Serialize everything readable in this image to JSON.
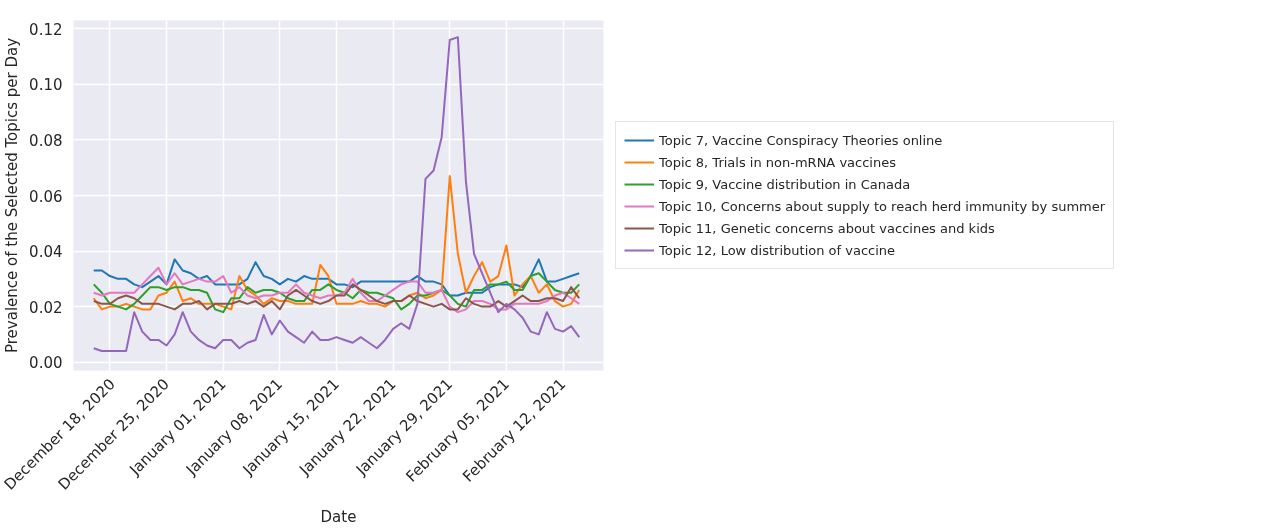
{
  "chart_data": {
    "type": "line",
    "xlabel": "Date",
    "ylabel": "Prevalence of the Selected Topics per Day",
    "x": [
      "2020-12-16",
      "2020-12-17",
      "2020-12-18",
      "2020-12-19",
      "2020-12-20",
      "2020-12-21",
      "2020-12-22",
      "2020-12-23",
      "2020-12-24",
      "2020-12-25",
      "2020-12-26",
      "2020-12-27",
      "2020-12-28",
      "2020-12-29",
      "2020-12-30",
      "2020-12-31",
      "2021-01-01",
      "2021-01-02",
      "2021-01-03",
      "2021-01-04",
      "2021-01-05",
      "2021-01-06",
      "2021-01-07",
      "2021-01-08",
      "2021-01-09",
      "2021-01-10",
      "2021-01-11",
      "2021-01-12",
      "2021-01-13",
      "2021-01-14",
      "2021-01-15",
      "2021-01-16",
      "2021-01-17",
      "2021-01-18",
      "2021-01-19",
      "2021-01-20",
      "2021-01-21",
      "2021-01-22",
      "2021-01-23",
      "2021-01-24",
      "2021-01-25",
      "2021-01-26",
      "2021-01-27",
      "2021-01-28",
      "2021-01-29",
      "2021-01-30",
      "2021-01-31",
      "2021-02-01",
      "2021-02-02",
      "2021-02-03",
      "2021-02-04",
      "2021-02-05",
      "2021-02-06",
      "2021-02-07",
      "2021-02-08",
      "2021-02-09",
      "2021-02-10",
      "2021-02-11",
      "2021-02-12",
      "2021-02-13",
      "2021-02-14"
    ],
    "xlim": [
      "2020-12-13T12:00",
      "2021-02-17T00:00"
    ],
    "xticks": [
      {
        "value": "2020-12-18",
        "label": "December 18, 2020"
      },
      {
        "value": "2020-12-25",
        "label": "December 25, 2020"
      },
      {
        "value": "2021-01-01",
        "label": "January 01, 2021"
      },
      {
        "value": "2021-01-08",
        "label": "January 08, 2021"
      },
      {
        "value": "2021-01-15",
        "label": "January 15, 2021"
      },
      {
        "value": "2021-01-22",
        "label": "January 22, 2021"
      },
      {
        "value": "2021-01-29",
        "label": "January 29, 2021"
      },
      {
        "value": "2021-02-05",
        "label": "February 05, 2021"
      },
      {
        "value": "2021-02-12",
        "label": "February 12, 2021"
      }
    ],
    "ylim": [
      -0.003,
      0.123
    ],
    "yticks": [
      {
        "value": 0,
        "label": "0.00"
      },
      {
        "value": 0.02,
        "label": "0.02"
      },
      {
        "value": 0.04,
        "label": "0.04"
      },
      {
        "value": 0.06,
        "label": "0.06"
      },
      {
        "value": 0.08,
        "label": "0.08"
      },
      {
        "value": 0.1,
        "label": "0.10"
      },
      {
        "value": 0.12,
        "label": "0.12"
      }
    ],
    "grid": true,
    "legend": "right",
    "line_style": "solid",
    "series": [
      {
        "name": "Topic 7, Vaccine Conspiracy Theories online",
        "color": "#1f77b4",
        "values": [
          0.033,
          0.033,
          0.031,
          0.03,
          0.03,
          0.028,
          0.027,
          0.029,
          0.031,
          0.028,
          0.037,
          0.033,
          0.032,
          0.03,
          0.031,
          0.028,
          0.028,
          0.028,
          0.028,
          0.03,
          0.036,
          0.031,
          0.03,
          0.028,
          0.03,
          0.029,
          0.031,
          0.03,
          0.03,
          0.03,
          0.028,
          0.028,
          0.027,
          0.029,
          0.029,
          0.029,
          0.029,
          0.029,
          0.029,
          0.029,
          0.031,
          0.029,
          0.029,
          0.028,
          0.024,
          0.024,
          0.025,
          0.025,
          0.025,
          0.027,
          0.028,
          0.028,
          0.028,
          0.027,
          0.031,
          0.037,
          0.029,
          0.029,
          0.03,
          0.031,
          0.032
        ]
      },
      {
        "name": "Topic 8, Trials in non-mRNA vaccines",
        "color": "#ff7f0e",
        "values": [
          0.023,
          0.019,
          0.02,
          0.02,
          0.021,
          0.02,
          0.019,
          0.019,
          0.024,
          0.025,
          0.029,
          0.022,
          0.023,
          0.021,
          0.021,
          0.021,
          0.02,
          0.019,
          0.031,
          0.026,
          0.024,
          0.021,
          0.023,
          0.022,
          0.022,
          0.021,
          0.021,
          0.021,
          0.035,
          0.031,
          0.021,
          0.021,
          0.021,
          0.022,
          0.021,
          0.021,
          0.02,
          0.022,
          0.022,
          0.024,
          0.025,
          0.023,
          0.024,
          0.026,
          0.067,
          0.039,
          0.025,
          0.031,
          0.036,
          0.029,
          0.031,
          0.042,
          0.024,
          0.028,
          0.031,
          0.025,
          0.028,
          0.022,
          0.02,
          0.021,
          0.026
        ]
      },
      {
        "name": "Topic 9, Vaccine distribution in Canada",
        "color": "#2ca02c",
        "values": [
          0.028,
          0.025,
          0.021,
          0.02,
          0.019,
          0.021,
          0.024,
          0.027,
          0.027,
          0.026,
          0.027,
          0.027,
          0.026,
          0.026,
          0.025,
          0.019,
          0.018,
          0.023,
          0.023,
          0.027,
          0.025,
          0.026,
          0.026,
          0.025,
          0.023,
          0.022,
          0.022,
          0.026,
          0.026,
          0.028,
          0.026,
          0.025,
          0.023,
          0.026,
          0.025,
          0.025,
          0.024,
          0.023,
          0.019,
          0.021,
          0.024,
          0.024,
          0.025,
          0.026,
          0.024,
          0.021,
          0.02,
          0.026,
          0.026,
          0.028,
          0.028,
          0.029,
          0.026,
          0.026,
          0.031,
          0.032,
          0.029,
          0.026,
          0.025,
          0.025,
          0.028
        ]
      },
      {
        "name": "Topic 10, Concerns about supply to reach herd immunity by summer",
        "color": "#e377c2",
        "values": [
          0.025,
          0.024,
          0.025,
          0.025,
          0.025,
          0.025,
          0.028,
          0.031,
          0.034,
          0.028,
          0.032,
          0.028,
          0.029,
          0.03,
          0.029,
          0.029,
          0.031,
          0.025,
          0.027,
          0.024,
          0.023,
          0.024,
          0.024,
          0.025,
          0.025,
          0.028,
          0.025,
          0.024,
          0.023,
          0.024,
          0.024,
          0.025,
          0.03,
          0.025,
          0.022,
          0.022,
          0.024,
          0.026,
          0.028,
          0.029,
          0.029,
          0.025,
          0.025,
          0.026,
          0.02,
          0.018,
          0.019,
          0.022,
          0.022,
          0.021,
          0.019,
          0.019,
          0.021,
          0.021,
          0.021,
          0.021,
          0.022,
          0.024,
          0.025,
          0.023,
          0.021
        ]
      },
      {
        "name": "Topic 11, Genetic concerns about vaccines and kids",
        "color": "#8c564b",
        "values": [
          0.022,
          0.021,
          0.021,
          0.023,
          0.024,
          0.023,
          0.021,
          0.021,
          0.021,
          0.02,
          0.019,
          0.021,
          0.021,
          0.022,
          0.019,
          0.021,
          0.021,
          0.021,
          0.022,
          0.021,
          0.022,
          0.02,
          0.022,
          0.019,
          0.024,
          0.026,
          0.024,
          0.022,
          0.021,
          0.022,
          0.024,
          0.024,
          0.028,
          0.026,
          0.024,
          0.022,
          0.021,
          0.022,
          0.022,
          0.024,
          0.022,
          0.021,
          0.02,
          0.021,
          0.019,
          0.019,
          0.023,
          0.021,
          0.02,
          0.02,
          0.022,
          0.02,
          0.022,
          0.024,
          0.022,
          0.022,
          0.023,
          0.023,
          0.022,
          0.027,
          0.023
        ]
      },
      {
        "name": "Topic 12, Low distribution of vaccine",
        "color": "#9467bd",
        "values": [
          0.005,
          0.004,
          0.004,
          0.004,
          0.004,
          0.018,
          0.011,
          0.008,
          0.008,
          0.006,
          0.01,
          0.018,
          0.011,
          0.008,
          0.006,
          0.005,
          0.008,
          0.008,
          0.005,
          0.007,
          0.008,
          0.017,
          0.01,
          0.015,
          0.011,
          0.009,
          0.007,
          0.011,
          0.008,
          0.008,
          0.009,
          0.008,
          0.007,
          0.009,
          0.007,
          0.005,
          0.008,
          0.012,
          0.014,
          0.012,
          0.021,
          0.066,
          0.069,
          0.081,
          0.116,
          0.117,
          0.065,
          0.039,
          0.032,
          0.025,
          0.018,
          0.021,
          0.019,
          0.016,
          0.011,
          0.01,
          0.018,
          0.012,
          0.011,
          0.013,
          0.009
        ]
      }
    ]
  }
}
